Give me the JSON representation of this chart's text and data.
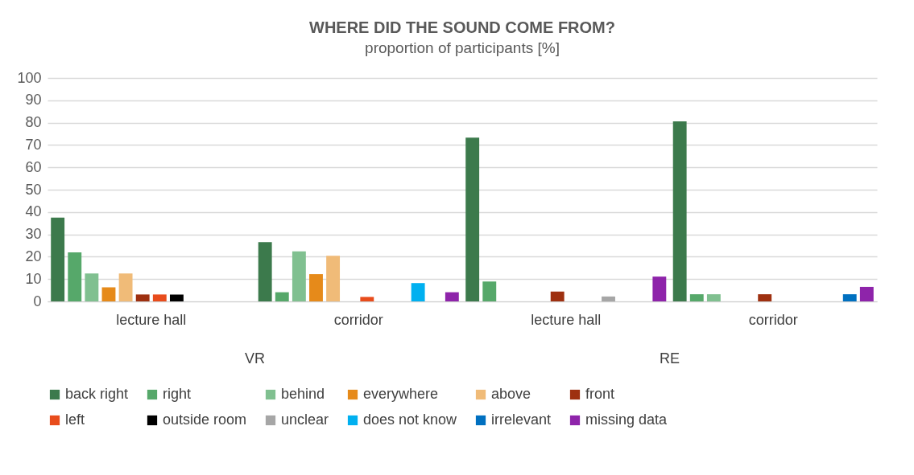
{
  "chart_data": {
    "type": "bar",
    "title": "WHERE DID THE SOUND COME FROM?",
    "subtitle": "proportion of participants [%]",
    "categories": [
      "lecture hall",
      "corridor",
      "lecture hall",
      "corridor"
    ],
    "annotations": [
      "VR",
      "RE"
    ],
    "series": [
      {
        "name": "back right",
        "color": "#3c7a4c",
        "values": [
          37.5,
          26.5,
          73.3,
          80.6
        ]
      },
      {
        "name": "right",
        "color": "#56a86a",
        "values": [
          21.9,
          4.1,
          8.9,
          3.2
        ]
      },
      {
        "name": "behind",
        "color": "#80c090",
        "values": [
          12.5,
          22.4,
          null,
          3.2
        ]
      },
      {
        "name": "everywhere",
        "color": "#e68a1a",
        "values": [
          6.3,
          12.2,
          null,
          null
        ]
      },
      {
        "name": "above",
        "color": "#f0bb78",
        "values": [
          12.5,
          20.4,
          null,
          null
        ]
      },
      {
        "name": "front",
        "color": "#9e3010",
        "values": [
          3.1,
          null,
          4.4,
          3.2
        ]
      },
      {
        "name": "left",
        "color": "#e84c1c",
        "values": [
          3.1,
          2.0,
          null,
          null
        ]
      },
      {
        "name": "outside room",
        "color": "#000000",
        "values": [
          3.1,
          null,
          null,
          null
        ]
      },
      {
        "name": "unclear",
        "color": "#a6a6a6",
        "values": [
          null,
          null,
          2.2,
          null
        ]
      },
      {
        "name": "does not know",
        "color": "#00b0f0",
        "values": [
          null,
          8.2,
          null,
          null
        ]
      },
      {
        "name": "irrelevant",
        "color": "#0070c0",
        "values": [
          null,
          null,
          null,
          3.2
        ]
      },
      {
        "name": "missing data",
        "color": "#8e24aa",
        "values": [
          null,
          4.1,
          11.1,
          6.5
        ]
      }
    ],
    "ylim": [
      0,
      100
    ],
    "yticks": [
      0,
      10,
      20,
      30,
      40,
      50,
      60,
      70,
      80,
      90,
      100
    ],
    "grid": "y",
    "legend": "bottom"
  }
}
